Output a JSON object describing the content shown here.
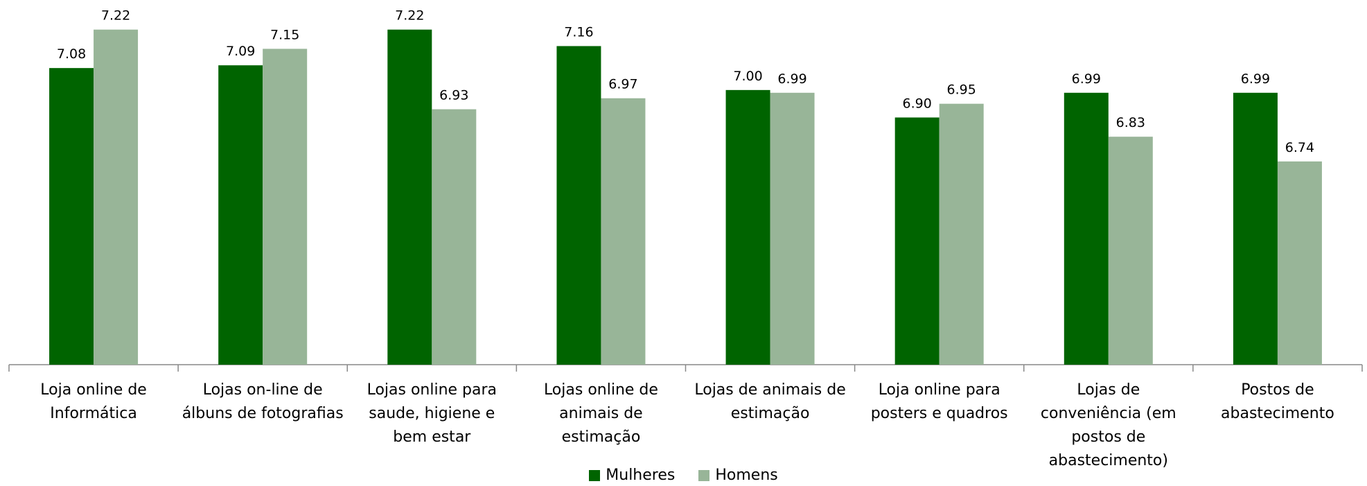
{
  "chart_data": {
    "type": "bar",
    "categories": [
      "Loja online de Informática",
      "Lojas on-line de álbuns de fotografias",
      "Lojas online para saude, higiene e bem estar",
      "Lojas online de animais de estimação",
      "Lojas de animais de estimação",
      "Loja online para posters e quadros",
      "Lojas de conveniência (em postos de abastecimento)",
      "Postos de abastecimento"
    ],
    "series": [
      {
        "name": "Mulheres",
        "color": "#006400",
        "values": [
          7.08,
          7.09,
          7.22,
          7.16,
          7.0,
          6.9,
          6.99,
          6.99
        ],
        "value_labels": [
          "7.08",
          "7.09",
          "7.22",
          "7.16",
          "7.00",
          "6.90",
          "6.99",
          "6.99"
        ]
      },
      {
        "name": "Homens",
        "color": "#98b598",
        "values": [
          7.22,
          7.15,
          6.93,
          6.97,
          6.99,
          6.95,
          6.83,
          6.74
        ],
        "value_labels": [
          "7.22",
          "7.15",
          "6.93",
          "6.97",
          "6.99",
          "6.95",
          "6.83",
          "6.74"
        ]
      }
    ],
    "ylim": [
      6,
      7.3
    ],
    "legend": "bottom"
  }
}
